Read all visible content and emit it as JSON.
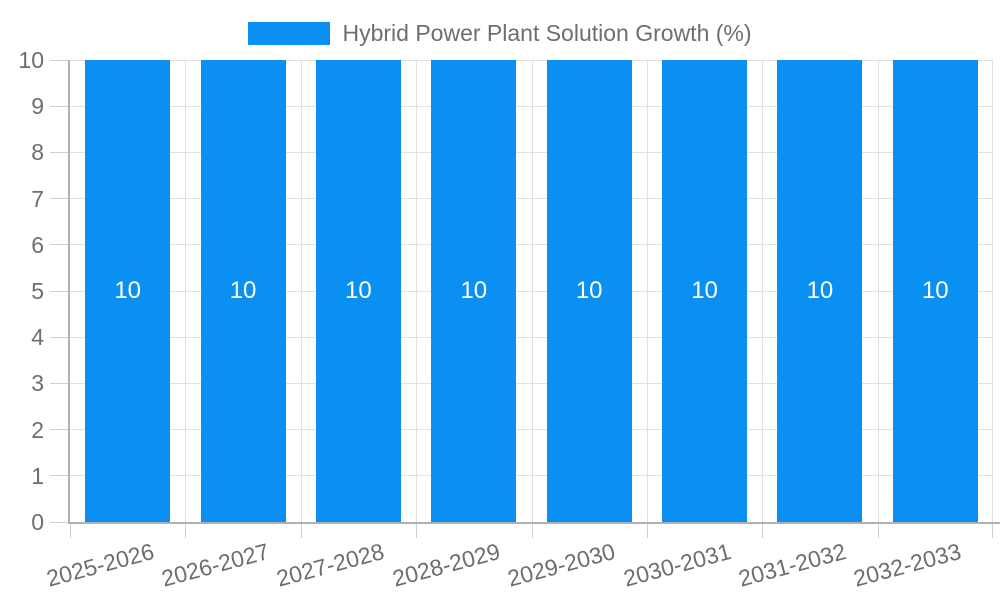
{
  "legend": {
    "label": "Hybrid Power Plant Solution Growth (%)"
  },
  "colors": {
    "bar": "#0a90f2",
    "grid": "#e1e1e1",
    "tick": "#cfcfcf",
    "axis": "#b0b0b0",
    "text": "#6e6e6e",
    "bar_label": "#ffffff"
  },
  "chart_data": {
    "type": "bar",
    "title": "",
    "xlabel": "",
    "ylabel": "",
    "categories": [
      "2025-2026",
      "2026-2027",
      "2027-2028",
      "2028-2029",
      "2029-2030",
      "2030-2031",
      "2031-2032",
      "2032-2033"
    ],
    "series": [
      {
        "name": "Hybrid Power Plant Solution Growth (%)",
        "values": [
          10,
          10,
          10,
          10,
          10,
          10,
          10,
          10
        ]
      }
    ],
    "ylim": [
      0,
      10
    ],
    "ytick_step": 1,
    "yticks": [
      0,
      1,
      2,
      3,
      4,
      5,
      6,
      7,
      8,
      9,
      10
    ],
    "grid": true,
    "legend_position": "top",
    "bar_labels_visible": true,
    "x_label_rotation_deg": -15
  }
}
